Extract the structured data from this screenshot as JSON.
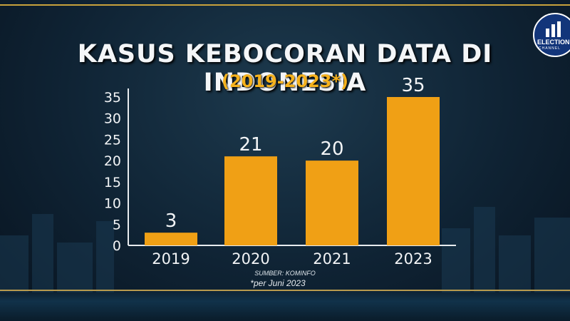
{
  "logo": {
    "text": "ELECTION",
    "sub": "CHANNEL"
  },
  "chart_data": {
    "type": "bar",
    "title": "KASUS KEBOCORAN DATA DI INDONESIA",
    "subtitle": "(2019-2023*)",
    "categories": [
      "2019",
      "2020",
      "2021",
      "2023"
    ],
    "values": [
      3,
      21,
      20,
      35
    ],
    "ylim": [
      0,
      35
    ],
    "yticks": [
      0,
      5,
      10,
      15,
      20,
      25,
      30,
      35
    ],
    "xlabel": "",
    "ylabel": "",
    "grid": false,
    "bar_color": "#f0a015",
    "source": "SUMBER: KOMINFO",
    "note": "*per Juni 2023"
  }
}
